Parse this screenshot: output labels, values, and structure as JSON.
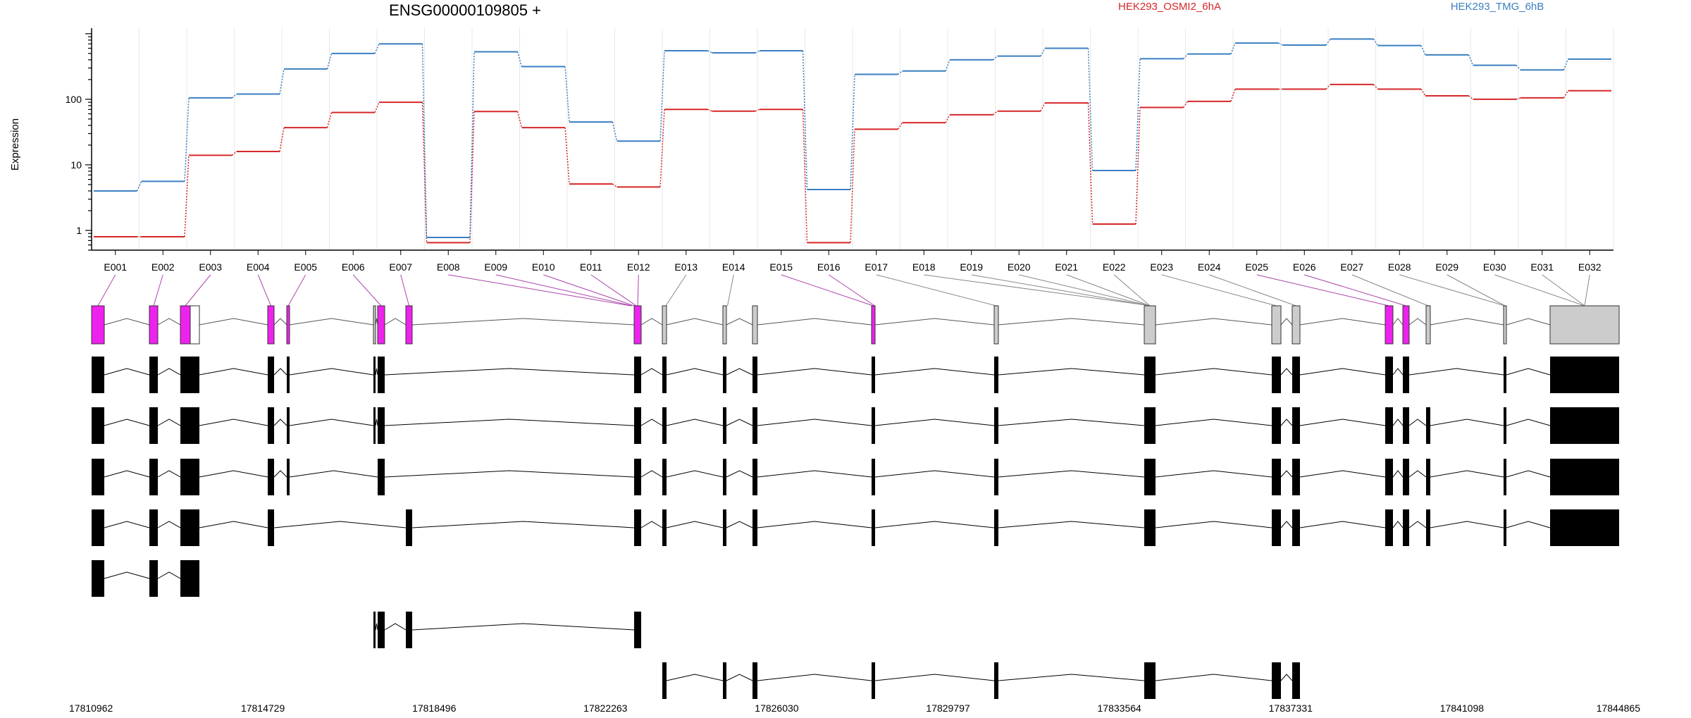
{
  "chart_data": {
    "type": "line",
    "title": "ENSG00000109805 +",
    "ylabel": "Expression",
    "y_scale": "log",
    "ylim": [
      0.5,
      1100
    ],
    "y_ticks": [
      1,
      10,
      100
    ],
    "y_tick_labels": [
      "1",
      "10",
      "100"
    ],
    "vertical_grid": true,
    "grid_color": "#e8e8e8",
    "legend_placement": "top-right",
    "categories": [
      "E001",
      "E002",
      "E003",
      "E004",
      "E005",
      "E006",
      "E007",
      "E008",
      "E009",
      "E010",
      "E011",
      "E012",
      "E013",
      "E014",
      "E015",
      "E016",
      "E017",
      "E018",
      "E019",
      "E020",
      "E021",
      "E022",
      "E023",
      "E024",
      "E025",
      "E026",
      "E027",
      "E028",
      "E029",
      "E030",
      "E031",
      "E032"
    ],
    "series": [
      {
        "name": "HEK293_OSMI2_6hA",
        "color": "#d62728",
        "values": [
          0.8,
          0.8,
          14,
          16,
          37,
          63,
          90,
          0.65,
          65,
          37,
          5.1,
          4.6,
          70,
          66,
          70,
          0.65,
          35,
          44,
          58,
          66,
          88,
          1.25,
          75,
          93,
          143,
          143,
          168,
          143,
          113,
          100,
          105,
          135
        ]
      },
      {
        "name": "HEK293_TMG_6hB",
        "color": "#3a7fc1",
        "values": [
          4,
          5.6,
          105,
          120,
          290,
          500,
          700,
          0.78,
          530,
          315,
          45,
          23,
          550,
          510,
          550,
          4.2,
          240,
          270,
          400,
          455,
          600,
          8.2,
          415,
          490,
          720,
          670,
          830,
          660,
          475,
          330,
          280,
          410
        ]
      }
    ],
    "x_genomic_ticks": [
      "17810962",
      "17814729",
      "17818496",
      "17822263",
      "17826030",
      "17829797",
      "17833564",
      "17837331",
      "17841098",
      "17844865"
    ],
    "exon_colors": {
      "flagged": "#ee22ee",
      "normal": "#cccccc",
      "transcript": "#000000"
    }
  }
}
